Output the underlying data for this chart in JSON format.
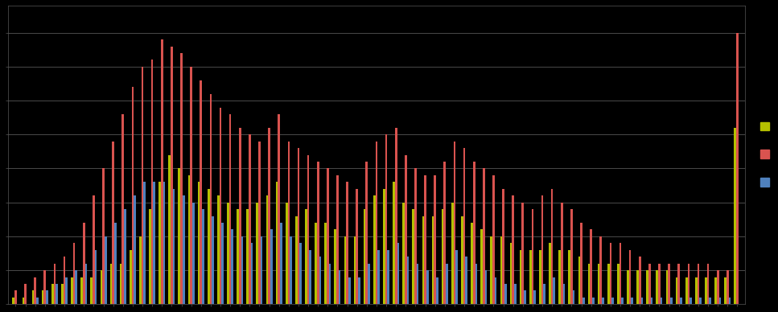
{
  "background_color": "#000000",
  "plot_bg_color": "#000000",
  "grid_color": "#555555",
  "bar_colors": [
    "#b5c000",
    "#d9534f",
    "#4f81bd"
  ],
  "n_groups": 75,
  "series_green": [
    0.5,
    0.5,
    1,
    1,
    1.5,
    1.5,
    2,
    2,
    2,
    2.5,
    3,
    3,
    4,
    5,
    7,
    9,
    11,
    10,
    9.5,
    9,
    8.5,
    8,
    7.5,
    7,
    7,
    7.5,
    8,
    9,
    7.5,
    6.5,
    7,
    6,
    6,
    5.5,
    5,
    5,
    7,
    8,
    8.5,
    9,
    7.5,
    7,
    6.5,
    6.5,
    7,
    7.5,
    6.5,
    6,
    5.5,
    5,
    5,
    4.5,
    4,
    4,
    4,
    4.5,
    4,
    4,
    3.5,
    3,
    3,
    3,
    3,
    2.5,
    2.5,
    2.5,
    2.5,
    2.5,
    2,
    2,
    2,
    2,
    2,
    2,
    13
  ],
  "series_red": [
    1,
    1.5,
    2,
    2.5,
    3,
    3.5,
    4.5,
    6,
    8,
    10,
    12,
    14,
    16,
    17.5,
    18,
    19.5,
    19,
    18.5,
    17.5,
    16.5,
    15.5,
    14.5,
    14,
    13,
    12.5,
    12,
    13,
    14,
    12,
    11.5,
    11,
    10.5,
    10,
    9.5,
    9,
    8.5,
    10.5,
    12,
    12.5,
    13,
    11,
    10,
    9.5,
    9.5,
    10.5,
    12,
    11.5,
    10.5,
    10,
    9.5,
    8.5,
    8,
    7.5,
    7,
    8,
    8.5,
    7.5,
    7,
    6,
    5.5,
    5,
    4.5,
    4.5,
    4,
    3.5,
    3,
    3,
    3,
    3,
    3,
    3,
    3,
    2.5,
    2.5,
    20
  ],
  "series_blue": [
    0,
    0,
    0.5,
    1,
    1.5,
    2,
    2.5,
    3,
    4,
    5,
    6,
    7,
    8,
    9,
    9,
    9,
    8.5,
    8,
    7.5,
    7,
    6.5,
    6,
    5.5,
    5,
    4.5,
    5,
    5.5,
    6,
    5,
    4.5,
    4,
    3.5,
    3,
    2.5,
    2,
    2,
    3,
    4,
    4,
    4.5,
    3.5,
    3,
    2.5,
    2,
    3,
    4,
    3.5,
    3,
    2.5,
    2,
    1.5,
    1.5,
    1,
    1,
    1.5,
    2,
    1.5,
    1,
    0.5,
    0.5,
    0.5,
    0.5,
    0.5,
    0.5,
    0.5,
    0.5,
    0.5,
    0.5,
    0.5,
    0.5,
    0.5,
    0.5,
    0.5,
    0.5,
    0
  ],
  "ylim": [
    0,
    22
  ],
  "bar_width": 0.22,
  "figsize": [
    9.67,
    3.88
  ],
  "dpi": 100
}
